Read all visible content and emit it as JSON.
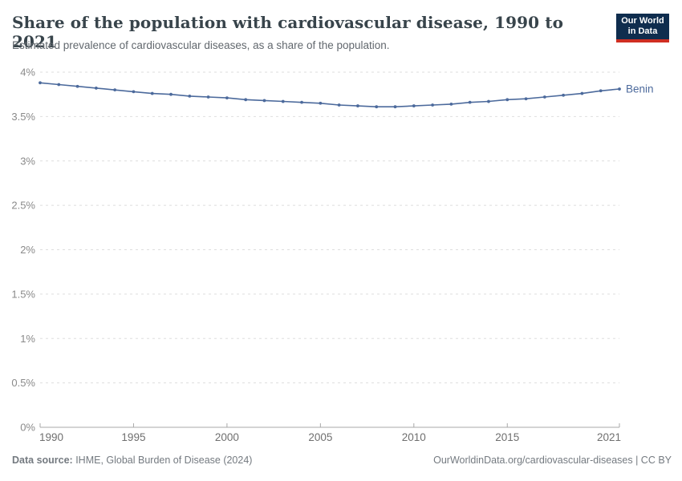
{
  "header": {
    "title": "Share of the population with cardiovascular disease, 1990 to 2021",
    "subtitle": "Estimated prevalence of cardiovascular diseases, as a share of the population.",
    "logo_line1": "Our World",
    "logo_line2": "in Data",
    "logo_navy": "#0f2d4e",
    "logo_red": "#cf2e22"
  },
  "footer": {
    "data_source_label": "Data source:",
    "data_source_value": " IHME, Global Burden of Disease (2024)",
    "credit": "OurWorldinData.org/cardiovascular-diseases | CC BY"
  },
  "chart_data": {
    "type": "line",
    "title": "Share of the population with cardiovascular disease, 1990 to 2021",
    "subtitle": "Estimated prevalence of cardiovascular diseases, as a share of the population.",
    "xlabel": "",
    "ylabel": "",
    "xlim": [
      1990,
      2021
    ],
    "ylim": [
      0,
      4
    ],
    "x_ticks": [
      1990,
      1995,
      2000,
      2005,
      2010,
      2015,
      2021
    ],
    "y_ticks": [
      0,
      0.5,
      1,
      1.5,
      2,
      2.5,
      3,
      3.5,
      4
    ],
    "y_tick_suffix": "%",
    "grid": "horizontal-dashed",
    "legend_position": "end-of-line-label",
    "colors": {
      "line": "#4c6a9c",
      "gridline": "#dedede",
      "axis": "#a8a8a8",
      "y_tick_label": "#8a8a8a",
      "x_tick_label": "#6f6f6f"
    },
    "years": [
      1990,
      1991,
      1992,
      1993,
      1994,
      1995,
      1996,
      1997,
      1998,
      1999,
      2000,
      2001,
      2002,
      2003,
      2004,
      2005,
      2006,
      2007,
      2008,
      2009,
      2010,
      2011,
      2012,
      2013,
      2014,
      2015,
      2016,
      2017,
      2018,
      2019,
      2020,
      2021
    ],
    "series": [
      {
        "name": "Benin",
        "color": "#4c6a9c",
        "values": [
          3.88,
          3.86,
          3.84,
          3.82,
          3.8,
          3.78,
          3.76,
          3.75,
          3.73,
          3.72,
          3.71,
          3.69,
          3.68,
          3.67,
          3.66,
          3.65,
          3.63,
          3.62,
          3.61,
          3.61,
          3.62,
          3.63,
          3.64,
          3.66,
          3.67,
          3.69,
          3.7,
          3.72,
          3.74,
          3.76,
          3.79,
          3.81
        ]
      }
    ]
  }
}
